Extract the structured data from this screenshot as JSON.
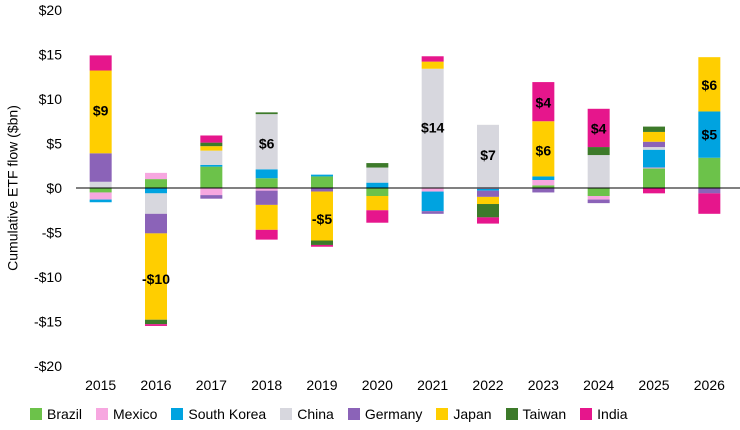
{
  "chart_data": {
    "type": "stacked-bar",
    "ylabel": "Cumulative ETF flow ($bn)",
    "ylim": [
      -20,
      20
    ],
    "yticks": [
      -20,
      -15,
      -10,
      -5,
      0,
      5,
      10,
      15,
      20
    ],
    "ytick_labels": [
      "-$20",
      "-$15",
      "-$10",
      "-$5",
      "$0",
      "$5",
      "$10",
      "$15",
      "$20"
    ],
    "categories": [
      "2015",
      "2016",
      "2017",
      "2018",
      "2019",
      "2020",
      "2021",
      "2022",
      "2023",
      "2024",
      "2025",
      "2026"
    ],
    "legend_position": "bottom",
    "series": [
      {
        "name": "Brazil",
        "color": "#6cc24a",
        "values": [
          -0.5,
          1.0,
          2.4,
          1.1,
          1.3,
          -0.9,
          0.0,
          0.0,
          0.3,
          -0.9,
          2.2,
          3.4
        ]
      },
      {
        "name": "Mexico",
        "color": "#f7a7e0",
        "values": [
          -0.8,
          0.7,
          -0.8,
          -0.3,
          0.0,
          0.0,
          -0.4,
          -0.1,
          0.6,
          -0.4,
          0.1,
          0.0
        ]
      },
      {
        "name": "South Korea",
        "color": "#00a3e0",
        "values": [
          -0.3,
          -0.6,
          0.2,
          1.0,
          0.2,
          0.6,
          -2.2,
          -0.2,
          0.4,
          0.0,
          2.0,
          5.2
        ]
      },
      {
        "name": "China",
        "color": "#d7d7de",
        "values": [
          0.7,
          -2.3,
          1.6,
          6.2,
          0.0,
          1.7,
          13.4,
          7.1,
          0.0,
          3.7,
          0.3,
          0.0
        ]
      },
      {
        "name": "Germany",
        "color": "#8b63b8",
        "values": [
          3.2,
          -2.2,
          -0.4,
          -1.6,
          -0.4,
          0.0,
          -0.3,
          -0.7,
          -0.5,
          -0.4,
          0.6,
          -0.6
        ]
      },
      {
        "name": "Japan",
        "color": "#ffce00",
        "values": [
          9.3,
          -9.7,
          0.5,
          -2.8,
          -5.5,
          -1.6,
          0.8,
          -0.8,
          6.2,
          0.0,
          1.1,
          6.1
        ]
      },
      {
        "name": "Taiwan",
        "color": "#3d7a2a",
        "values": [
          0.0,
          -0.5,
          0.4,
          0.2,
          -0.5,
          0.5,
          0.0,
          -1.5,
          0.0,
          0.9,
          0.6,
          0.0
        ]
      },
      {
        "name": "India",
        "color": "#e6168c",
        "values": [
          1.7,
          -0.2,
          0.8,
          -1.1,
          -0.2,
          -1.4,
          0.6,
          -0.7,
          4.4,
          4.3,
          -0.6,
          -2.3
        ]
      }
    ],
    "annotations": [
      {
        "category": "2015",
        "text": "$9",
        "y": 8.7
      },
      {
        "category": "2016",
        "text": "-$10",
        "y": -10.2
      },
      {
        "category": "2018",
        "text": "$6",
        "y": 5.0
      },
      {
        "category": "2019",
        "text": "-$5",
        "y": -3.5
      },
      {
        "category": "2021",
        "text": "$14",
        "y": 6.8
      },
      {
        "category": "2022",
        "text": "$7",
        "y": 3.7
      },
      {
        "category": "2023",
        "text": "$4",
        "y": 9.6
      },
      {
        "category": "2023",
        "text": "$6",
        "y": 4.2
      },
      {
        "category": "2024",
        "text": "$4",
        "y": 6.7
      },
      {
        "category": "2026",
        "text": "$6",
        "y": 11.6
      },
      {
        "category": "2026",
        "text": "$5",
        "y": 6.0
      }
    ]
  }
}
